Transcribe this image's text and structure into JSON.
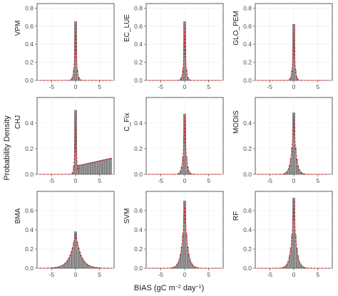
{
  "chart_data": {
    "type": "bar",
    "layout": "3x3 facet grid, histograms with red dashed density curves",
    "ylabel": "Probability Density",
    "xlabel": {
      "prefix": "BIAS (gC m",
      "sup1": "−2",
      "mid": " day",
      "sup2": "−1",
      "suffix": ")"
    },
    "xticks": [
      "-5",
      "0",
      "5"
    ],
    "xtick_values": [
      -5,
      0,
      5
    ],
    "xlim": [
      -8,
      8
    ],
    "histogram_color": "#b3b3b3",
    "histogram_edge": "#333333",
    "curve_color": "#e41a1c",
    "panels": [
      {
        "name": "VPM",
        "ylim": [
          0,
          0.85
        ],
        "yticks": [
          "0.0",
          "0.2",
          "0.4",
          "0.6",
          "0.8"
        ],
        "ytick_values": [
          0,
          0.2,
          0.4,
          0.6,
          0.8
        ],
        "peak": 0.65,
        "scale": 0.22,
        "centre": 0.0
      },
      {
        "name": "EC_LUE",
        "ylim": [
          0,
          0.85
        ],
        "yticks": [
          "0.0",
          "0.2",
          "0.4",
          "0.6",
          "0.8"
        ],
        "ytick_values": [
          0,
          0.2,
          0.4,
          0.6,
          0.8
        ],
        "peak": 0.65,
        "scale": 0.22,
        "centre": 0.0
      },
      {
        "name": "GLO_PEM",
        "ylim": [
          0,
          0.85
        ],
        "yticks": [
          "0.0",
          "0.2",
          "0.4",
          "0.6",
          "0.8"
        ],
        "ytick_values": [
          0,
          0.2,
          0.4,
          0.6,
          0.8
        ],
        "peak": 0.62,
        "scale": 0.22,
        "centre": 0.0
      },
      {
        "name": "CHJ",
        "ylim": [
          0,
          0.6
        ],
        "yticks": [
          "0.0",
          "0.2",
          "0.4"
        ],
        "ytick_values": [
          0,
          0.2,
          0.4
        ],
        "peak": 0.5,
        "scale": 0.18,
        "centre": 0.0,
        "tail": true
      },
      {
        "name": "C_Fix",
        "ylim": [
          0,
          0.6
        ],
        "yticks": [
          "0.0",
          "0.2",
          "0.4"
        ],
        "ytick_values": [
          0,
          0.2,
          0.4
        ],
        "peak": 0.47,
        "scale": 0.3,
        "centre": 0.0
      },
      {
        "name": "MODIS",
        "ylim": [
          0,
          0.6
        ],
        "yticks": [
          "0.0",
          "0.2",
          "0.4"
        ],
        "ytick_values": [
          0,
          0.2,
          0.4
        ],
        "peak": 0.48,
        "scale": 0.45,
        "centre": 0.0
      },
      {
        "name": "BMA",
        "ylim": [
          0,
          0.8
        ],
        "yticks": [
          "0.0",
          "0.2",
          "0.4",
          "0.6"
        ],
        "ytick_values": [
          0,
          0.2,
          0.4,
          0.6
        ],
        "peak": 0.38,
        "scale": 1.1,
        "centre": 0.0
      },
      {
        "name": "SVM",
        "ylim": [
          0,
          0.8
        ],
        "yticks": [
          "0.0",
          "0.2",
          "0.4",
          "0.6"
        ],
        "ytick_values": [
          0,
          0.2,
          0.4,
          0.6
        ],
        "peak": 0.7,
        "scale": 0.55,
        "centre": 0.0
      },
      {
        "name": "RF",
        "ylim": [
          0,
          0.8
        ],
        "yticks": [
          "0.0",
          "0.2",
          "0.4",
          "0.6"
        ],
        "ytick_values": [
          0,
          0.2,
          0.4,
          0.6
        ],
        "peak": 0.73,
        "scale": 0.5,
        "centre": 0.0
      }
    ]
  }
}
